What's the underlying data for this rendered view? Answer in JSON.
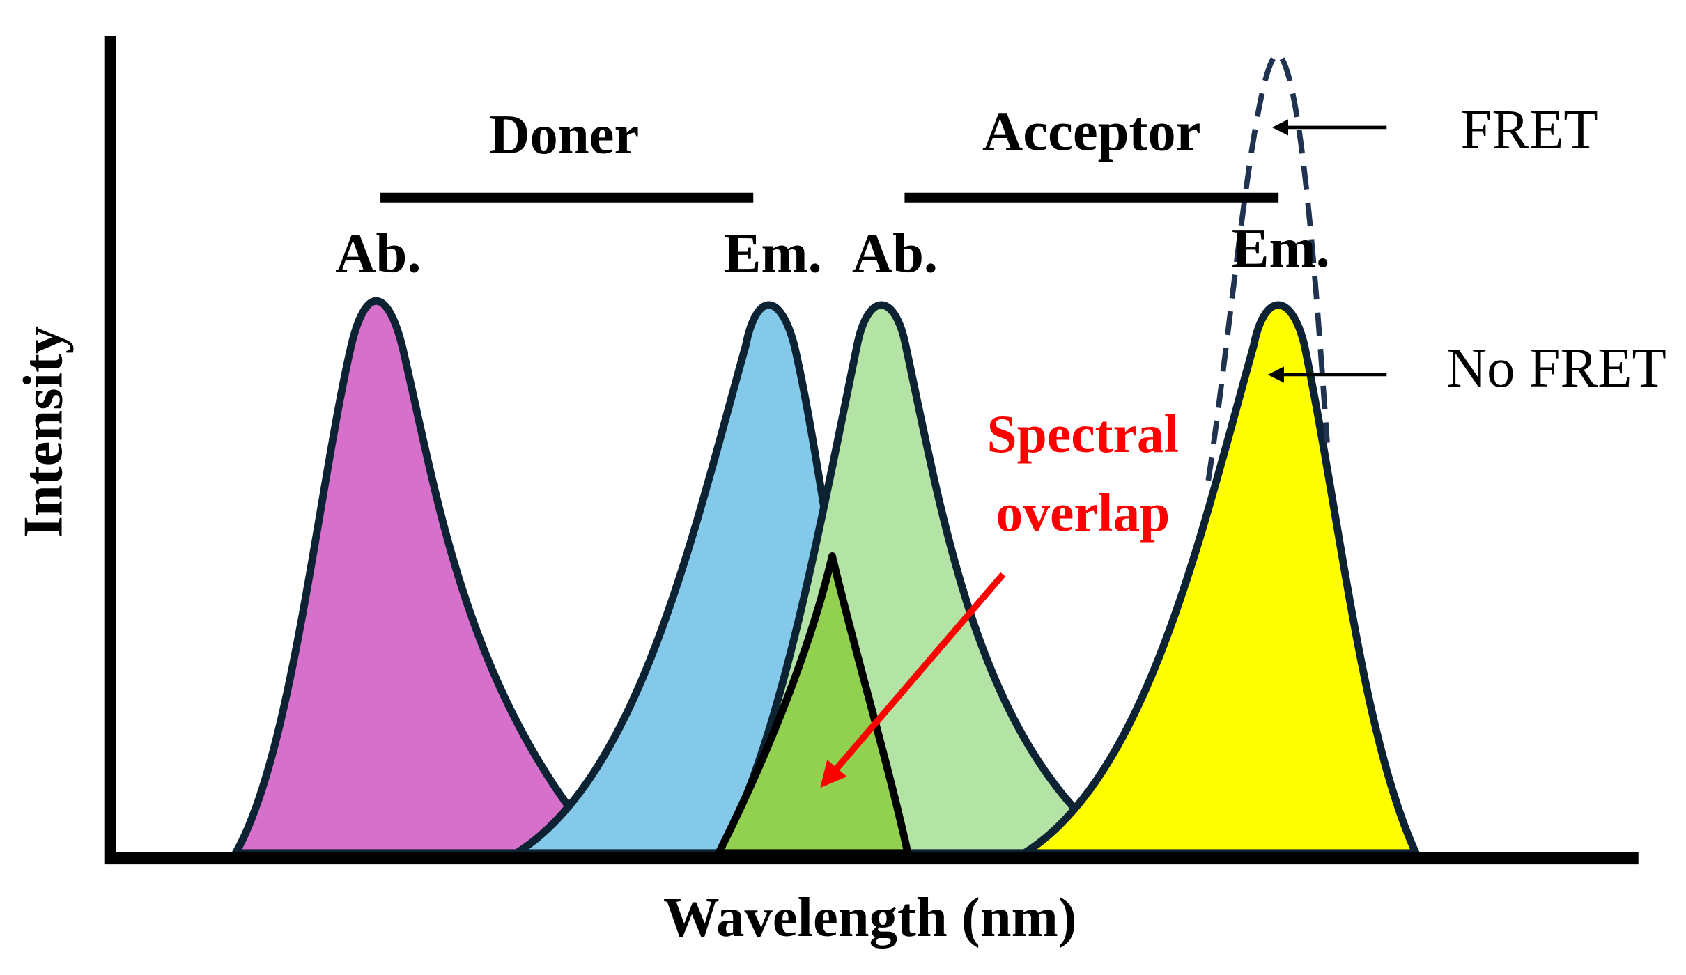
{
  "axes": {
    "x_label": "Wavelength (nm)",
    "y_label": "Intensity"
  },
  "groups": [
    {
      "label": "Doner",
      "peaks": [
        "Ab.",
        "Em."
      ]
    },
    {
      "label": "Acceptor",
      "peaks": [
        "Ab.",
        "Em."
      ]
    }
  ],
  "annotations": {
    "spectral_overlap": [
      "Spectral",
      "overlap"
    ],
    "fret": "FRET",
    "no_fret": "No FRET"
  }
}
